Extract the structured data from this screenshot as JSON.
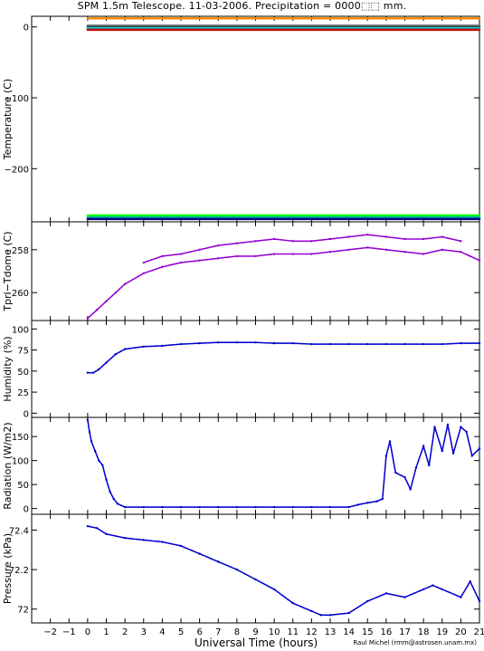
{
  "title": "SPM 1.5m Telescope. 11-03-2006. Precipitation = 0000⬚⬚ mm.",
  "credit": "Raul Michel (rmm@astrosen.unam.mx)",
  "chart_data": {
    "type": "scatter",
    "xlabel": "Universal Time (hours)",
    "x_ticks": [
      "−2",
      "−1",
      "0",
      "1",
      "2",
      "3",
      "4",
      "5",
      "6",
      "7",
      "8",
      "9",
      "10",
      "11",
      "12",
      "13",
      "14",
      "15",
      "16",
      "17",
      "18",
      "19",
      "20",
      "21"
    ],
    "xlim": [
      -3,
      21
    ],
    "panels": [
      {
        "ylabel": "Temperature (C)",
        "ylim": [
          -275,
          15
        ],
        "y_ticks": [
          0,
          -100,
          -200
        ],
        "y_tick_labels": [
          "0",
          "−100",
          "−200"
        ],
        "series": [
          {
            "color": "#ff8c00",
            "x": [
              0,
              21
            ],
            "y": [
              12,
              12
            ]
          },
          {
            "color": "#808080",
            "x": [
              0,
              21
            ],
            "y": [
              2,
              2
            ]
          },
          {
            "color": "#2f4f4f",
            "x": [
              0,
              21
            ],
            "y": [
              0,
              0
            ]
          },
          {
            "color": "#00ced1",
            "x": [
              0,
              21
            ],
            "y": [
              -2,
              -2
            ]
          },
          {
            "color": "#cc0000",
            "x": [
              0,
              21
            ],
            "y": [
              -4,
              -4
            ]
          },
          {
            "color": "#00ff00",
            "x": [
              0,
              21
            ],
            "y": [
              -266,
              -266
            ]
          },
          {
            "color": "#00b0b0",
            "x": [
              0,
              21
            ],
            "y": [
              -269,
              -269
            ]
          },
          {
            "color": "#000080",
            "x": [
              0,
              21
            ],
            "y": [
              -271,
              -271
            ]
          }
        ]
      },
      {
        "ylabel": "Tpri−Tdome (C)",
        "ylim": [
          -261.3,
          -256.7
        ],
        "y_ticks": [
          -258,
          -260
        ],
        "y_tick_labels": [
          "−258",
          "−260"
        ],
        "series": [
          {
            "color": "#9400d3",
            "x": [
              0,
              0.5,
              1,
              1.5,
              2,
              3,
              4,
              5,
              6,
              7,
              8,
              9,
              10,
              11,
              12,
              13,
              14,
              15,
              16,
              17,
              18,
              19,
              20,
              20.5,
              21
            ],
            "y": [
              -261.2,
              -260.8,
              -260.4,
              -260.0,
              -259.6,
              -259.1,
              -258.8,
              -258.6,
              -258.5,
              -258.4,
              -258.3,
              -258.3,
              -258.2,
              -258.2,
              -258.2,
              -258.1,
              -258.0,
              -257.9,
              -258.0,
              -258.1,
              -258.2,
              -258.0,
              -258.1,
              -258.3,
              -258.5
            ]
          },
          {
            "color": "#9400d3",
            "x": [
              3,
              4,
              5,
              6,
              7,
              8,
              9,
              10,
              11,
              12,
              13,
              14,
              15,
              16,
              17,
              18,
              19,
              20
            ],
            "y": [
              -258.6,
              -258.3,
              -258.2,
              -258.0,
              -257.8,
              -257.7,
              -257.6,
              -257.5,
              -257.6,
              -257.6,
              -257.5,
              -257.4,
              -257.3,
              -257.4,
              -257.5,
              -257.5,
              -257.4,
              -257.6
            ]
          }
        ]
      },
      {
        "ylabel": "Humidity (%)",
        "ylim": [
          -5,
          110
        ],
        "y_ticks": [
          0,
          25,
          50,
          75,
          100
        ],
        "y_tick_labels": [
          "0",
          "25",
          "50",
          "75",
          "100"
        ],
        "series": [
          {
            "color": "#0000cd",
            "x": [
              0,
              0.3,
              0.6,
              1,
              1.5,
              2,
              3,
              4,
              5,
              6,
              7,
              8,
              9,
              10,
              11,
              12,
              13,
              14,
              15,
              16,
              17,
              18,
              19,
              20,
              21
            ],
            "y": [
              48,
              48,
              52,
              60,
              70,
              76,
              79,
              80,
              82,
              83,
              84,
              84,
              84,
              83,
              83,
              82,
              82,
              82,
              82,
              82,
              82,
              82,
              82,
              83,
              83
            ]
          }
        ]
      },
      {
        "ylabel": "Radiation (W/m2)",
        "ylim": [
          -12,
          190
        ],
        "y_ticks": [
          0,
          50,
          100,
          150
        ],
        "y_tick_labels": [
          "0",
          "50",
          "100",
          "150"
        ],
        "series": [
          {
            "color": "#0000cd",
            "x": [
              0,
              0.1,
              0.2,
              0.4,
              0.6,
              0.8,
              1.0,
              1.2,
              1.4,
              1.6,
              2,
              3,
              4,
              5,
              6,
              7,
              8,
              9,
              10,
              11,
              12,
              13,
              14,
              14.5,
              15,
              15.5,
              15.8,
              16,
              16.2,
              16.5,
              17,
              17.3,
              17.6,
              18,
              18.3,
              18.6,
              19,
              19.3,
              19.6,
              20,
              20.3,
              20.6,
              21
            ],
            "y": [
              185,
              160,
              140,
              120,
              100,
              90,
              60,
              35,
              20,
              10,
              3,
              3,
              3,
              3,
              3,
              3,
              3,
              3,
              3,
              3,
              3,
              3,
              3,
              8,
              12,
              15,
              20,
              110,
              140,
              75,
              65,
              40,
              85,
              130,
              90,
              170,
              120,
              175,
              115,
              170,
              160,
              110,
              125
            ]
          }
        ]
      },
      {
        "ylabel": "Pressure (kPa)",
        "ylim": [
          71.93,
          72.48
        ],
        "y_ticks": [
          72,
          72.2,
          72.4
        ],
        "y_tick_labels": [
          "72",
          "72.2",
          "72.4"
        ],
        "series": [
          {
            "color": "#0000cd",
            "x": [
              0,
              0.5,
              1,
              2,
              3,
              4,
              5,
              6,
              7,
              8,
              9,
              10,
              11,
              12,
              12.5,
              13,
              14,
              15,
              16,
              17,
              18,
              18.5,
              19,
              20,
              20.5,
              21
            ],
            "y": [
              72.42,
              72.41,
              72.38,
              72.36,
              72.35,
              72.34,
              72.32,
              72.28,
              72.24,
              72.2,
              72.15,
              72.1,
              72.03,
              71.99,
              71.97,
              71.97,
              71.98,
              72.04,
              72.08,
              72.06,
              72.1,
              72.12,
              72.1,
              72.06,
              72.14,
              72.04
            ]
          }
        ]
      }
    ]
  }
}
